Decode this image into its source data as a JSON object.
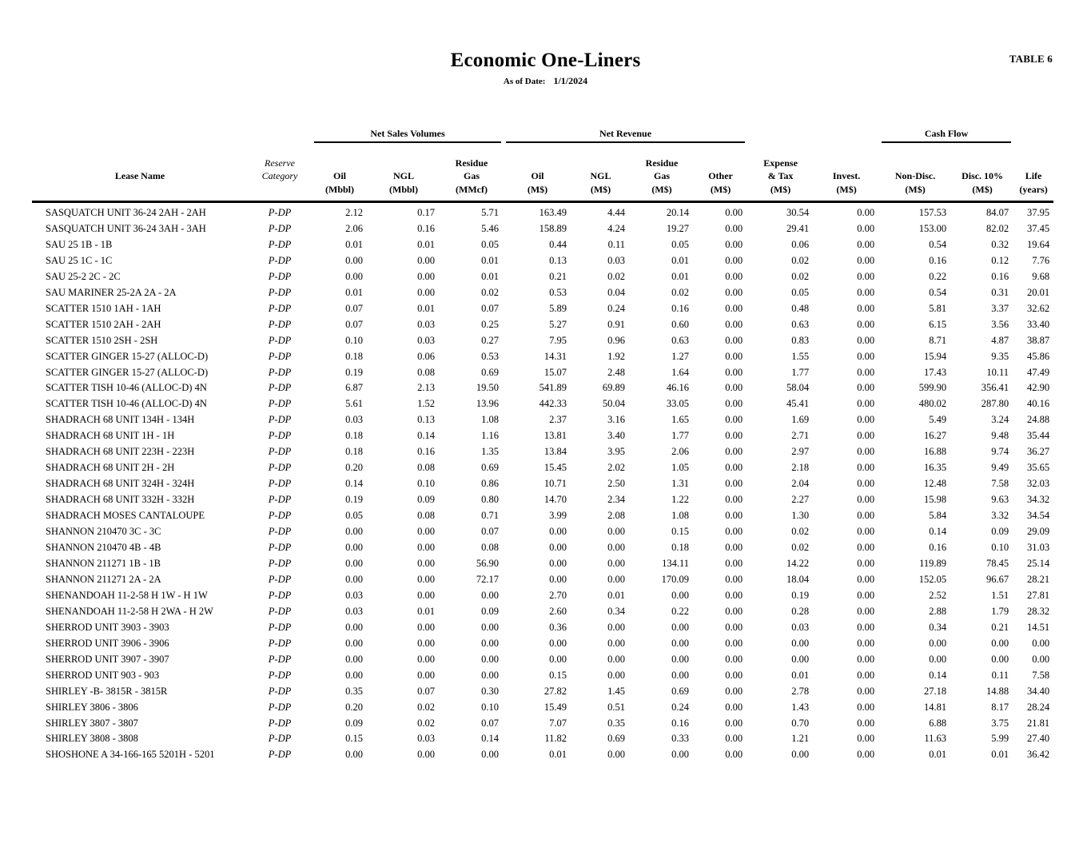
{
  "doc": {
    "table_label": "TABLE 6",
    "title": "Economic One-Liners",
    "as_of_label": "As of Date:",
    "as_of_date": "1/1/2024"
  },
  "table": {
    "groups": [
      "Net Sales Volumes",
      "Net Revenue",
      "Cash Flow"
    ],
    "cols": [
      {
        "l1": "",
        "l2": "Lease Name",
        "l3": ""
      },
      {
        "l1": "",
        "l2": "Reserve Category",
        "l3": ""
      },
      {
        "l1": "",
        "l2": "Oil",
        "l3": "(Mbbl)"
      },
      {
        "l1": "",
        "l2": "NGL",
        "l3": "(Mbbl)"
      },
      {
        "l1": "Residue",
        "l2": "Gas",
        "l3": "(MMcf)"
      },
      {
        "l1": "",
        "l2": "Oil",
        "l3": "(M$)"
      },
      {
        "l1": "",
        "l2": "NGL",
        "l3": "(M$)"
      },
      {
        "l1": "Residue",
        "l2": "Gas",
        "l3": "(M$)"
      },
      {
        "l1": "",
        "l2": "Other",
        "l3": "(M$)"
      },
      {
        "l1": "Expense",
        "l2": "& Tax",
        "l3": "(M$)"
      },
      {
        "l1": "",
        "l2": "Invest.",
        "l3": "(M$)"
      },
      {
        "l1": "",
        "l2": "Non-Disc.",
        "l3": "(M$)"
      },
      {
        "l1": "",
        "l2": "Disc. 10%",
        "l3": "(M$)"
      },
      {
        "l1": "",
        "l2": "Life",
        "l3": "(years)"
      }
    ],
    "rows": [
      {
        "name": "SASQUATCH UNIT 36-24 2AH - 2AH",
        "category": "P-DP",
        "values": [
          "2.12",
          "0.17",
          "5.71",
          "163.49",
          "4.44",
          "20.14",
          "0.00",
          "30.54",
          "0.00",
          "157.53",
          "84.07",
          "37.95"
        ]
      },
      {
        "name": "SASQUATCH UNIT 36-24 3AH - 3AH",
        "category": "P-DP",
        "values": [
          "2.06",
          "0.16",
          "5.46",
          "158.89",
          "4.24",
          "19.27",
          "0.00",
          "29.41",
          "0.00",
          "153.00",
          "82.02",
          "37.45"
        ]
      },
      {
        "name": "SAU 25 1B - 1B",
        "category": "P-DP",
        "values": [
          "0.01",
          "0.01",
          "0.05",
          "0.44",
          "0.11",
          "0.05",
          "0.00",
          "0.06",
          "0.00",
          "0.54",
          "0.32",
          "19.64"
        ]
      },
      {
        "name": "SAU 25 1C - 1C",
        "category": "P-DP",
        "values": [
          "0.00",
          "0.00",
          "0.01",
          "0.13",
          "0.03",
          "0.01",
          "0.00",
          "0.02",
          "0.00",
          "0.16",
          "0.12",
          "7.76"
        ]
      },
      {
        "name": "SAU 25-2 2C - 2C",
        "category": "P-DP",
        "values": [
          "0.00",
          "0.00",
          "0.01",
          "0.21",
          "0.02",
          "0.01",
          "0.00",
          "0.02",
          "0.00",
          "0.22",
          "0.16",
          "9.68"
        ]
      },
      {
        "name": "SAU MARINER 25-2A 2A - 2A",
        "category": "P-DP",
        "values": [
          "0.01",
          "0.00",
          "0.02",
          "0.53",
          "0.04",
          "0.02",
          "0.00",
          "0.05",
          "0.00",
          "0.54",
          "0.31",
          "20.01"
        ]
      },
      {
        "name": "SCATTER 1510 1AH - 1AH",
        "category": "P-DP",
        "values": [
          "0.07",
          "0.01",
          "0.07",
          "5.89",
          "0.24",
          "0.16",
          "0.00",
          "0.48",
          "0.00",
          "5.81",
          "3.37",
          "32.62"
        ]
      },
      {
        "name": "SCATTER 1510 2AH - 2AH",
        "category": "P-DP",
        "values": [
          "0.07",
          "0.03",
          "0.25",
          "5.27",
          "0.91",
          "0.60",
          "0.00",
          "0.63",
          "0.00",
          "6.15",
          "3.56",
          "33.40"
        ]
      },
      {
        "name": "SCATTER 1510 2SH - 2SH",
        "category": "P-DP",
        "values": [
          "0.10",
          "0.03",
          "0.27",
          "7.95",
          "0.96",
          "0.63",
          "0.00",
          "0.83",
          "0.00",
          "8.71",
          "4.87",
          "38.87"
        ]
      },
      {
        "name": "SCATTER GINGER 15-27 (ALLOC-D)",
        "category": "P-DP",
        "values": [
          "0.18",
          "0.06",
          "0.53",
          "14.31",
          "1.92",
          "1.27",
          "0.00",
          "1.55",
          "0.00",
          "15.94",
          "9.35",
          "45.86"
        ]
      },
      {
        "name": "SCATTER GINGER 15-27 (ALLOC-D)",
        "category": "P-DP",
        "values": [
          "0.19",
          "0.08",
          "0.69",
          "15.07",
          "2.48",
          "1.64",
          "0.00",
          "1.77",
          "0.00",
          "17.43",
          "10.11",
          "47.49"
        ]
      },
      {
        "name": "SCATTER TISH 10-46 (ALLOC-D) 4N",
        "category": "P-DP",
        "values": [
          "6.87",
          "2.13",
          "19.50",
          "541.89",
          "69.89",
          "46.16",
          "0.00",
          "58.04",
          "0.00",
          "599.90",
          "356.41",
          "42.90"
        ]
      },
      {
        "name": "SCATTER TISH 10-46 (ALLOC-D) 4N",
        "category": "P-DP",
        "values": [
          "5.61",
          "1.52",
          "13.96",
          "442.33",
          "50.04",
          "33.05",
          "0.00",
          "45.41",
          "0.00",
          "480.02",
          "287.80",
          "40.16"
        ]
      },
      {
        "name": "SHADRACH 68 UNIT 134H - 134H",
        "category": "P-DP",
        "values": [
          "0.03",
          "0.13",
          "1.08",
          "2.37",
          "3.16",
          "1.65",
          "0.00",
          "1.69",
          "0.00",
          "5.49",
          "3.24",
          "24.88"
        ]
      },
      {
        "name": "SHADRACH 68 UNIT 1H - 1H",
        "category": "P-DP",
        "values": [
          "0.18",
          "0.14",
          "1.16",
          "13.81",
          "3.40",
          "1.77",
          "0.00",
          "2.71",
          "0.00",
          "16.27",
          "9.48",
          "35.44"
        ]
      },
      {
        "name": "SHADRACH 68 UNIT 223H - 223H",
        "category": "P-DP",
        "values": [
          "0.18",
          "0.16",
          "1.35",
          "13.84",
          "3.95",
          "2.06",
          "0.00",
          "2.97",
          "0.00",
          "16.88",
          "9.74",
          "36.27"
        ]
      },
      {
        "name": "SHADRACH 68 UNIT 2H - 2H",
        "category": "P-DP",
        "values": [
          "0.20",
          "0.08",
          "0.69",
          "15.45",
          "2.02",
          "1.05",
          "0.00",
          "2.18",
          "0.00",
          "16.35",
          "9.49",
          "35.65"
        ]
      },
      {
        "name": "SHADRACH 68 UNIT 324H - 324H",
        "category": "P-DP",
        "values": [
          "0.14",
          "0.10",
          "0.86",
          "10.71",
          "2.50",
          "1.31",
          "0.00",
          "2.04",
          "0.00",
          "12.48",
          "7.58",
          "32.03"
        ]
      },
      {
        "name": "SHADRACH 68 UNIT 332H - 332H",
        "category": "P-DP",
        "values": [
          "0.19",
          "0.09",
          "0.80",
          "14.70",
          "2.34",
          "1.22",
          "0.00",
          "2.27",
          "0.00",
          "15.98",
          "9.63",
          "34.32"
        ]
      },
      {
        "name": "SHADRACH MOSES CANTALOUPE",
        "category": "P-DP",
        "values": [
          "0.05",
          "0.08",
          "0.71",
          "3.99",
          "2.08",
          "1.08",
          "0.00",
          "1.30",
          "0.00",
          "5.84",
          "3.32",
          "34.54"
        ]
      },
      {
        "name": "SHANNON 210470 3C - 3C",
        "category": "P-DP",
        "values": [
          "0.00",
          "0.00",
          "0.07",
          "0.00",
          "0.00",
          "0.15",
          "0.00",
          "0.02",
          "0.00",
          "0.14",
          "0.09",
          "29.09"
        ]
      },
      {
        "name": "SHANNON 210470 4B - 4B",
        "category": "P-DP",
        "values": [
          "0.00",
          "0.00",
          "0.08",
          "0.00",
          "0.00",
          "0.18",
          "0.00",
          "0.02",
          "0.00",
          "0.16",
          "0.10",
          "31.03"
        ]
      },
      {
        "name": "SHANNON 211271 1B - 1B",
        "category": "P-DP",
        "values": [
          "0.00",
          "0.00",
          "56.90",
          "0.00",
          "0.00",
          "134.11",
          "0.00",
          "14.22",
          "0.00",
          "119.89",
          "78.45",
          "25.14"
        ]
      },
      {
        "name": "SHANNON 211271 2A - 2A",
        "category": "P-DP",
        "values": [
          "0.00",
          "0.00",
          "72.17",
          "0.00",
          "0.00",
          "170.09",
          "0.00",
          "18.04",
          "0.00",
          "152.05",
          "96.67",
          "28.21"
        ]
      },
      {
        "name": "SHENANDOAH 11-2-58 H 1W - H 1W",
        "category": "P-DP",
        "values": [
          "0.03",
          "0.00",
          "0.00",
          "2.70",
          "0.01",
          "0.00",
          "0.00",
          "0.19",
          "0.00",
          "2.52",
          "1.51",
          "27.81"
        ]
      },
      {
        "name": "SHENANDOAH 11-2-58 H 2WA - H 2W",
        "category": "P-DP",
        "values": [
          "0.03",
          "0.01",
          "0.09",
          "2.60",
          "0.34",
          "0.22",
          "0.00",
          "0.28",
          "0.00",
          "2.88",
          "1.79",
          "28.32"
        ]
      },
      {
        "name": "SHERROD UNIT 3903 - 3903",
        "category": "P-DP",
        "values": [
          "0.00",
          "0.00",
          "0.00",
          "0.36",
          "0.00",
          "0.00",
          "0.00",
          "0.03",
          "0.00",
          "0.34",
          "0.21",
          "14.51"
        ]
      },
      {
        "name": "SHERROD UNIT 3906 - 3906",
        "category": "P-DP",
        "values": [
          "0.00",
          "0.00",
          "0.00",
          "0.00",
          "0.00",
          "0.00",
          "0.00",
          "0.00",
          "0.00",
          "0.00",
          "0.00",
          "0.00"
        ]
      },
      {
        "name": "SHERROD UNIT 3907 - 3907",
        "category": "P-DP",
        "values": [
          "0.00",
          "0.00",
          "0.00",
          "0.00",
          "0.00",
          "0.00",
          "0.00",
          "0.00",
          "0.00",
          "0.00",
          "0.00",
          "0.00"
        ]
      },
      {
        "name": "SHERROD UNIT 903 - 903",
        "category": "P-DP",
        "values": [
          "0.00",
          "0.00",
          "0.00",
          "0.15",
          "0.00",
          "0.00",
          "0.00",
          "0.01",
          "0.00",
          "0.14",
          "0.11",
          "7.58"
        ]
      },
      {
        "name": "SHIRLEY -B- 3815R - 3815R",
        "category": "P-DP",
        "values": [
          "0.35",
          "0.07",
          "0.30",
          "27.82",
          "1.45",
          "0.69",
          "0.00",
          "2.78",
          "0.00",
          "27.18",
          "14.88",
          "34.40"
        ]
      },
      {
        "name": "SHIRLEY 3806 - 3806",
        "category": "P-DP",
        "values": [
          "0.20",
          "0.02",
          "0.10",
          "15.49",
          "0.51",
          "0.24",
          "0.00",
          "1.43",
          "0.00",
          "14.81",
          "8.17",
          "28.24"
        ]
      },
      {
        "name": "SHIRLEY 3807 - 3807",
        "category": "P-DP",
        "values": [
          "0.09",
          "0.02",
          "0.07",
          "7.07",
          "0.35",
          "0.16",
          "0.00",
          "0.70",
          "0.00",
          "6.88",
          "3.75",
          "21.81"
        ]
      },
      {
        "name": "SHIRLEY 3808 - 3808",
        "category": "P-DP",
        "values": [
          "0.15",
          "0.03",
          "0.14",
          "11.82",
          "0.69",
          "0.33",
          "0.00",
          "1.21",
          "0.00",
          "11.63",
          "5.99",
          "27.40"
        ]
      },
      {
        "name": "SHOSHONE A 34-166-165 5201H - 5201",
        "category": "P-DP",
        "values": [
          "0.00",
          "0.00",
          "0.00",
          "0.01",
          "0.00",
          "0.00",
          "0.00",
          "0.00",
          "0.00",
          "0.01",
          "0.01",
          "36.42"
        ]
      }
    ]
  }
}
